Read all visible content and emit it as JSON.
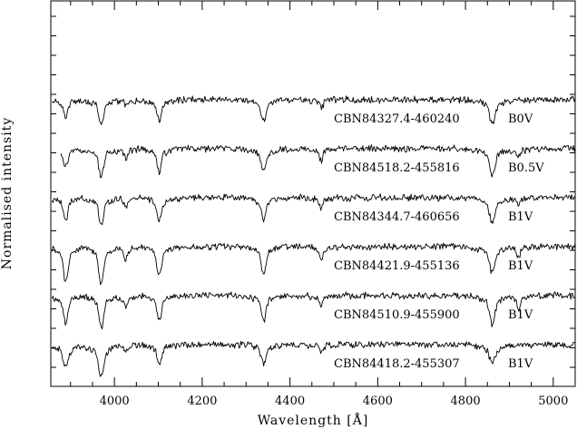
{
  "chart_data": {
    "type": "line",
    "xlabel": "Wavelength [Å]",
    "ylabel": "Normalised intensity",
    "xlim": [
      3855,
      5050
    ],
    "xticks": [
      4000,
      4200,
      4400,
      4600,
      4800,
      5000
    ],
    "xtick_labels": [
      "4000",
      "4200",
      "4400",
      "4600",
      "4800",
      "5000"
    ],
    "grid": false,
    "series": [
      {
        "name": "CBN84327.4-460240",
        "spectral_type": "B0V",
        "offset": 5,
        "lines": [
          [
            3889,
            0.45,
            5
          ],
          [
            3970,
            0.7,
            5
          ],
          [
            4102,
            0.55,
            5
          ],
          [
            4340,
            0.55,
            5
          ],
          [
            4861,
            0.6,
            6
          ],
          [
            4026,
            0.15,
            4
          ],
          [
            4471,
            0.2,
            4
          ]
        ]
      },
      {
        "name": "CBN84518.2-455816",
        "spectral_type": "B0.5V",
        "offset": 4,
        "lines": [
          [
            3889,
            0.45,
            5
          ],
          [
            3970,
            0.75,
            5
          ],
          [
            4102,
            0.6,
            5
          ],
          [
            4340,
            0.6,
            5
          ],
          [
            4861,
            0.65,
            6
          ],
          [
            4026,
            0.25,
            4
          ],
          [
            4471,
            0.3,
            4
          ],
          [
            4921,
            0.2,
            4
          ]
        ]
      },
      {
        "name": "CBN84344.7-460656",
        "spectral_type": "B1V",
        "offset": 3,
        "lines": [
          [
            3889,
            0.55,
            5
          ],
          [
            3970,
            0.75,
            5
          ],
          [
            4102,
            0.6,
            5
          ],
          [
            4340,
            0.6,
            5
          ],
          [
            4861,
            0.65,
            6
          ],
          [
            4026,
            0.25,
            4
          ],
          [
            4471,
            0.25,
            4
          ],
          [
            4921,
            0.2,
            4
          ]
        ]
      },
      {
        "name": "CBN84421.9-455136",
        "spectral_type": "B1V",
        "offset": 2,
        "lines": [
          [
            3889,
            0.9,
            5
          ],
          [
            3970,
            1.0,
            5
          ],
          [
            4102,
            0.75,
            5
          ],
          [
            4340,
            0.75,
            5
          ],
          [
            4861,
            0.7,
            6
          ],
          [
            4026,
            0.35,
            4
          ],
          [
            4471,
            0.35,
            4
          ],
          [
            4921,
            0.25,
            4
          ]
        ]
      },
      {
        "name": "CBN84510.9-455900",
        "spectral_type": "B1V",
        "offset": 1,
        "lines": [
          [
            3889,
            0.7,
            5
          ],
          [
            3970,
            0.85,
            5
          ],
          [
            4102,
            0.65,
            5
          ],
          [
            4340,
            0.65,
            5
          ],
          [
            4861,
            0.75,
            6
          ],
          [
            4026,
            0.3,
            4
          ],
          [
            4471,
            0.3,
            4
          ],
          [
            4921,
            0.35,
            4
          ]
        ]
      },
      {
        "name": "CBN84418.2-455307",
        "spectral_type": "B1V",
        "offset": 0,
        "lines": [
          [
            3889,
            0.6,
            6
          ],
          [
            3970,
            0.85,
            6
          ],
          [
            4102,
            0.5,
            5
          ],
          [
            4340,
            0.5,
            5
          ],
          [
            4861,
            0.45,
            7
          ],
          [
            4026,
            0.15,
            4
          ],
          [
            4471,
            0.2,
            4
          ]
        ]
      }
    ]
  }
}
